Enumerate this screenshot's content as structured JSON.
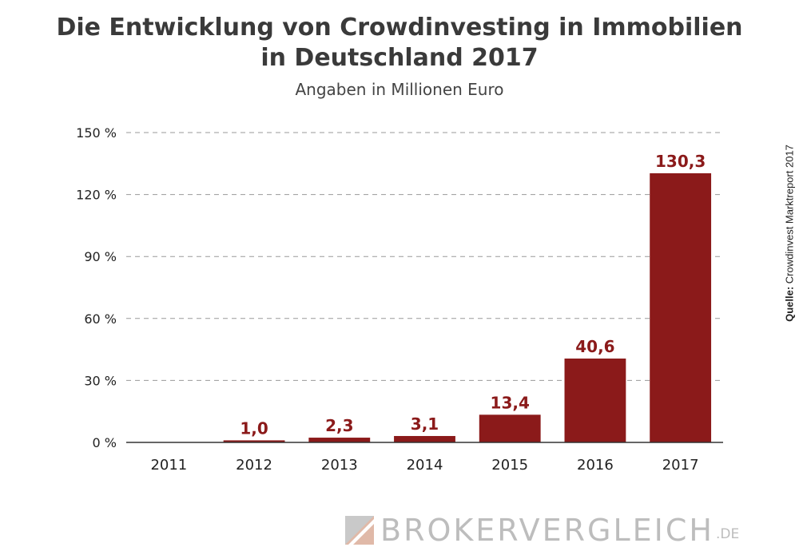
{
  "title_line1": "Die Entwicklung von Crowdinvesting in Immobilien",
  "title_line2": "in Deutschland 2017",
  "subtitle": "Angaben in Millionen Euro",
  "source": {
    "label": "Quelle:",
    "text": "Crowdinvest Marktreport 2017"
  },
  "brand": {
    "name": "BROKERVERGLEICH",
    "tld": ".DE"
  },
  "colors": {
    "bar": "#8b1a1a",
    "label": "#8b1a1a",
    "axis": "#333333",
    "grid": "#9a9a9a"
  },
  "chart_data": {
    "type": "bar",
    "categories": [
      "2011",
      "2012",
      "2013",
      "2014",
      "2015",
      "2016",
      "2017"
    ],
    "values": [
      0,
      1.0,
      2.3,
      3.1,
      13.4,
      40.6,
      130.3
    ],
    "data_labels": [
      "",
      "1,0",
      "2,3",
      "3,1",
      "13,4",
      "40,6",
      "130,3"
    ],
    "y_ticks": [
      0,
      30,
      60,
      90,
      120,
      150
    ],
    "y_tick_labels": [
      "0 %",
      "30 %",
      "60 %",
      "90 %",
      "120 %",
      "150 %"
    ],
    "ylim": [
      0,
      150
    ],
    "grid": true,
    "legend": "none"
  }
}
